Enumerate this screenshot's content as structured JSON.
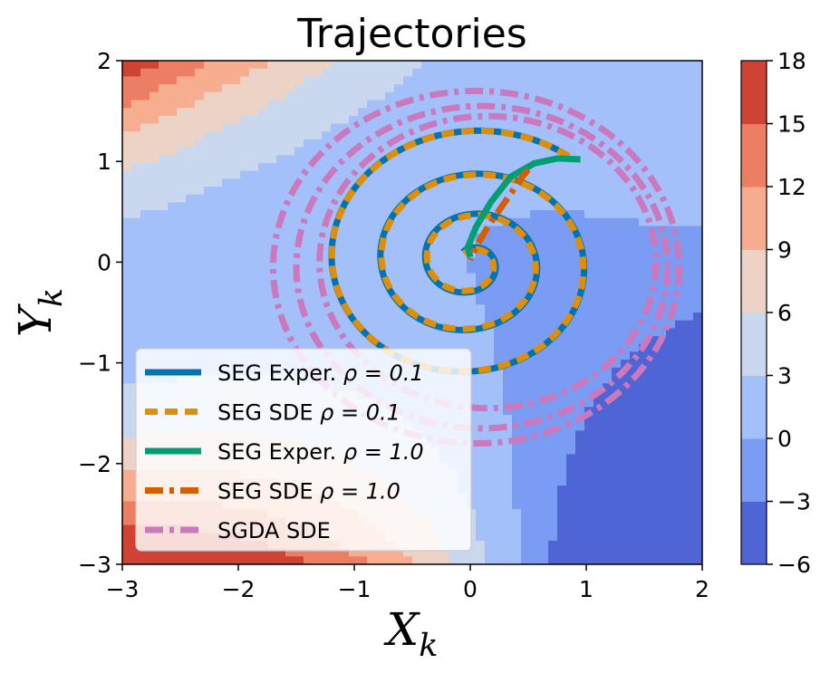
{
  "chart_data": {
    "type": "line",
    "title": "Trajectories",
    "xlabel": "X",
    "xlabel_sub": "k",
    "ylabel": "Y",
    "ylabel_sub": "k",
    "xlim": [
      -3,
      2
    ],
    "ylim": [
      -3,
      2
    ],
    "x_ticks": [
      "−3",
      "−2",
      "−1",
      "0",
      "1",
      "2"
    ],
    "y_ticks": [
      "−3",
      "−2",
      "−1",
      "0",
      "1",
      "2"
    ],
    "x_tick_values": [
      -3,
      -2,
      -1,
      0,
      1,
      2
    ],
    "y_tick_values": [
      -3,
      -2,
      -1,
      0,
      1,
      2
    ],
    "grid": false,
    "legend_position": "lower-left",
    "colorbar": {
      "levels": [
        -6,
        -3,
        0,
        3,
        6,
        9,
        12,
        15,
        18
      ],
      "tick_labels": [
        "−6",
        "−3",
        "0",
        "3",
        "6",
        "9",
        "12",
        "15",
        "18"
      ],
      "colors": [
        "#4f65d6",
        "#7a9cf2",
        "#a3c0fb",
        "#c9d7ef",
        "#ecd3c5",
        "#f7ad90",
        "#ec7f63",
        "#cf4335"
      ]
    },
    "background": {
      "description": "filled contour of the objective",
      "field": "0.5*x^2*y + 0.7*x*y + 0.5*y^2 - 0.8*x*y^2 - 0.5*x"
    },
    "series": [
      {
        "name": "SEG Exper. ρ = 0.1",
        "label_text": "SEG Exper. ",
        "label_math": "ρ = 0.1",
        "color": "#0173b2",
        "style": "solid",
        "spiral": {
          "start": [
            0.85,
            1.05
          ],
          "end": [
            0.0,
            0.0
          ],
          "turns": 3.2,
          "rmin": 0.12
        }
      },
      {
        "name": "SEG SDE ρ = 0.1",
        "label_text": "SEG SDE ",
        "label_math": "ρ = 0.1",
        "color": "#de8f05",
        "style": "dashed",
        "spiral": {
          "start": [
            0.85,
            1.05
          ],
          "end": [
            0.0,
            0.0
          ],
          "turns": 3.2,
          "rmin": 0.1
        }
      },
      {
        "name": "SEG Exper. ρ = 1.0",
        "label_text": "SEG Exper. ",
        "label_math": "ρ = 1.0",
        "color": "#029e73",
        "style": "solid",
        "points": [
          [
            0.95,
            1.02
          ],
          [
            0.75,
            1.03
          ],
          [
            0.55,
            0.98
          ],
          [
            0.35,
            0.85
          ],
          [
            0.18,
            0.6
          ],
          [
            0.05,
            0.35
          ],
          [
            -0.02,
            0.15
          ],
          [
            0.0,
            0.05
          ]
        ]
      },
      {
        "name": "SEG SDE ρ = 1.0",
        "label_text": "SEG SDE ",
        "label_math": "ρ = 1.0",
        "color": "#d55e00",
        "style": "dashdot",
        "points": [
          [
            0.5,
            0.92
          ],
          [
            0.45,
            0.85
          ],
          [
            0.3,
            0.6
          ],
          [
            0.15,
            0.35
          ],
          [
            0.05,
            0.15
          ],
          [
            0.0,
            0.02
          ]
        ]
      },
      {
        "name": "SGDA SDE",
        "label_text": "SGDA SDE",
        "label_math": "",
        "color": "#cc78bc",
        "style": "dashdot",
        "rings": [
          {
            "cx": 0.05,
            "cy": -0.05,
            "r": 1.75
          },
          {
            "cx": 0.1,
            "cy": -0.05,
            "r": 1.6
          },
          {
            "cx": 0.15,
            "cy": 0.0,
            "r": 1.45
          }
        ]
      }
    ]
  }
}
